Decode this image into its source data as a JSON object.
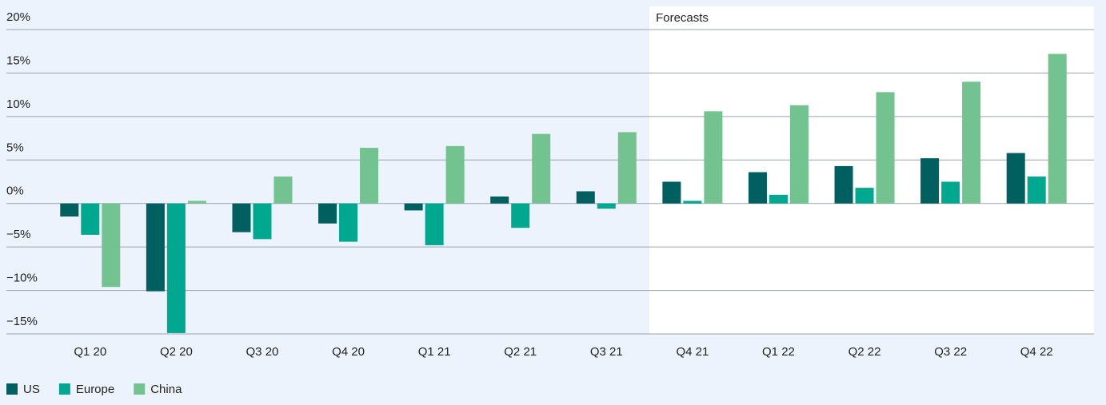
{
  "chart_data": {
    "type": "bar",
    "annotation": "Forecasts",
    "categories": [
      "Q1 20",
      "Q2 20",
      "Q3 20",
      "Q4 20",
      "Q1 21",
      "Q2 21",
      "Q3 21",
      "Q4 21",
      "Q1 22",
      "Q2 22",
      "Q3 22",
      "Q4 22"
    ],
    "series": [
      {
        "name": "US",
        "color": "#005f5f",
        "values": [
          -1.5,
          -10.1,
          -3.3,
          -2.3,
          -0.8,
          0.8,
          1.4,
          2.5,
          3.6,
          4.3,
          5.2,
          5.8
        ]
      },
      {
        "name": "Europe",
        "color": "#00a88f",
        "values": [
          -3.6,
          -14.9,
          -4.1,
          -4.4,
          -4.8,
          -2.8,
          -0.6,
          0.3,
          1.0,
          1.8,
          2.5,
          3.1
        ]
      },
      {
        "name": "China",
        "color": "#73c391",
        "values": [
          -9.6,
          0.3,
          3.1,
          6.4,
          6.6,
          8.0,
          8.2,
          10.6,
          11.3,
          12.8,
          14.0,
          17.2
        ]
      }
    ],
    "ylim": [
      -15,
      20
    ],
    "yticks": [
      {
        "value": -15,
        "label": "−15%"
      },
      {
        "value": -10,
        "label": "−10%"
      },
      {
        "value": -5,
        "label": "−5%"
      },
      {
        "value": 0,
        "label": "0%"
      },
      {
        "value": 5,
        "label": "5%"
      },
      {
        "value": 10,
        "label": "10%"
      },
      {
        "value": 15,
        "label": "15%"
      },
      {
        "value": 20,
        "label": "20%"
      }
    ],
    "grid": true,
    "legend": "bottom-left"
  }
}
